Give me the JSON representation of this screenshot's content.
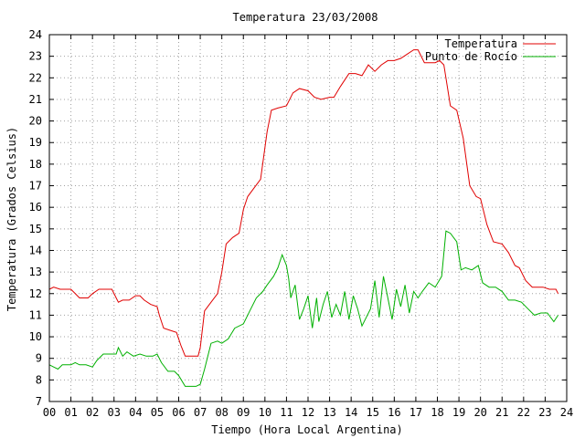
{
  "chart_data": {
    "type": "line",
    "title": "Temperatura 23/03/2008",
    "xlabel": "Tiempo (Hora Local Argentina)",
    "ylabel": "Temperatura (Grados Celsius)",
    "xlim": [
      0,
      24
    ],
    "ylim": [
      7,
      24
    ],
    "xticks": [
      "00",
      "01",
      "02",
      "03",
      "04",
      "05",
      "06",
      "07",
      "08",
      "09",
      "10",
      "11",
      "12",
      "13",
      "14",
      "15",
      "16",
      "17",
      "18",
      "19",
      "20",
      "21",
      "22",
      "23",
      "24"
    ],
    "yticks": [
      7,
      8,
      9,
      10,
      11,
      12,
      13,
      14,
      15,
      16,
      17,
      18,
      19,
      20,
      21,
      22,
      23,
      24
    ],
    "grid": true,
    "legend_position": "top-right",
    "series": [
      {
        "name": "Temperatura",
        "color": "#e00000",
        "x": [
          0.0,
          0.2,
          0.5,
          0.8,
          1.0,
          1.4,
          1.6,
          1.8,
          2.0,
          2.3,
          2.6,
          2.9,
          3.2,
          3.4,
          3.7,
          4.0,
          4.2,
          4.4,
          4.7,
          5.0,
          5.1,
          5.3,
          5.6,
          5.9,
          6.1,
          6.3,
          6.6,
          6.9,
          7.0,
          7.2,
          7.5,
          7.8,
          8.0,
          8.2,
          8.5,
          8.8,
          9.0,
          9.2,
          9.5,
          9.8,
          10.1,
          10.3,
          10.6,
          11.0,
          11.3,
          11.6,
          12.0,
          12.3,
          12.6,
          13.0,
          13.2,
          13.5,
          13.9,
          14.2,
          14.5,
          14.8,
          15.1,
          15.4,
          15.7,
          16.0,
          16.3,
          16.6,
          16.9,
          17.1,
          17.4,
          17.7,
          17.9,
          18.1,
          18.3,
          18.6,
          18.9,
          19.2,
          19.5,
          19.8,
          20.0,
          20.3,
          20.6,
          21.0,
          21.3,
          21.6,
          21.8,
          22.1,
          22.4,
          22.6,
          22.9,
          23.2,
          23.5,
          23.6
        ],
        "y": [
          12.2,
          12.3,
          12.2,
          12.2,
          12.2,
          11.8,
          11.8,
          11.8,
          12.0,
          12.2,
          12.2,
          12.2,
          11.6,
          11.7,
          11.7,
          11.9,
          11.9,
          11.7,
          11.5,
          11.4,
          11.0,
          10.4,
          10.3,
          10.2,
          9.6,
          9.1,
          9.1,
          9.1,
          9.5,
          11.2,
          11.6,
          12.0,
          13.0,
          14.3,
          14.6,
          14.8,
          15.9,
          16.5,
          16.9,
          17.3,
          19.5,
          20.5,
          20.6,
          20.7,
          21.3,
          21.5,
          21.4,
          21.1,
          21.0,
          21.1,
          21.1,
          21.6,
          22.2,
          22.2,
          22.1,
          22.6,
          22.3,
          22.6,
          22.8,
          22.8,
          22.9,
          23.1,
          23.3,
          23.3,
          22.7,
          22.7,
          22.7,
          22.8,
          22.6,
          20.7,
          20.5,
          19.2,
          17.0,
          16.5,
          16.4,
          15.2,
          14.4,
          14.3,
          13.9,
          13.3,
          13.2,
          12.6,
          12.3,
          12.3,
          12.3,
          12.2,
          12.2,
          12.0
        ]
      },
      {
        "name": "Punto de Rocío",
        "color": "#00b000",
        "x": [
          0.0,
          0.2,
          0.4,
          0.6,
          1.0,
          1.2,
          1.4,
          1.7,
          2.0,
          2.2,
          2.5,
          2.8,
          3.1,
          3.2,
          3.4,
          3.6,
          3.9,
          4.2,
          4.5,
          4.8,
          5.0,
          5.2,
          5.5,
          5.8,
          6.0,
          6.3,
          6.6,
          6.8,
          7.0,
          7.2,
          7.5,
          7.8,
          8.0,
          8.3,
          8.6,
          9.0,
          9.3,
          9.6,
          9.9,
          10.1,
          10.4,
          10.6,
          10.8,
          11.0,
          11.1,
          11.2,
          11.4,
          11.6,
          11.8,
          12.0,
          12.2,
          12.4,
          12.5,
          12.7,
          12.9,
          13.1,
          13.3,
          13.5,
          13.7,
          13.9,
          14.1,
          14.3,
          14.5,
          14.7,
          14.9,
          15.1,
          15.3,
          15.5,
          15.7,
          15.9,
          16.1,
          16.3,
          16.5,
          16.7,
          16.9,
          17.1,
          17.3,
          17.6,
          17.9,
          18.2,
          18.4,
          18.6,
          18.9,
          19.1,
          19.3,
          19.6,
          19.9,
          20.1,
          20.4,
          20.7,
          21.0,
          21.3,
          21.6,
          21.9,
          22.2,
          22.5,
          22.8,
          23.1,
          23.4,
          23.6
        ],
        "y": [
          8.7,
          8.6,
          8.5,
          8.7,
          8.7,
          8.8,
          8.7,
          8.7,
          8.6,
          8.9,
          9.2,
          9.2,
          9.2,
          9.5,
          9.1,
          9.3,
          9.1,
          9.2,
          9.1,
          9.1,
          9.2,
          8.8,
          8.4,
          8.4,
          8.2,
          7.7,
          7.7,
          7.7,
          7.8,
          8.5,
          9.7,
          9.8,
          9.7,
          9.9,
          10.4,
          10.6,
          11.2,
          11.8,
          12.1,
          12.4,
          12.8,
          13.2,
          13.8,
          13.3,
          12.7,
          11.8,
          12.4,
          10.8,
          11.3,
          11.9,
          10.4,
          11.8,
          10.7,
          11.5,
          12.1,
          10.9,
          11.5,
          11.0,
          12.1,
          10.8,
          11.9,
          11.3,
          10.5,
          10.9,
          11.3,
          12.6,
          10.9,
          12.8,
          11.8,
          10.8,
          12.2,
          11.4,
          12.4,
          11.1,
          12.1,
          11.8,
          12.1,
          12.5,
          12.3,
          12.8,
          14.9,
          14.8,
          14.4,
          13.1,
          13.2,
          13.1,
          13.3,
          12.5,
          12.3,
          12.3,
          12.1,
          11.7,
          11.7,
          11.6,
          11.3,
          11.0,
          11.1,
          11.1,
          10.7,
          11.0
        ]
      }
    ]
  }
}
